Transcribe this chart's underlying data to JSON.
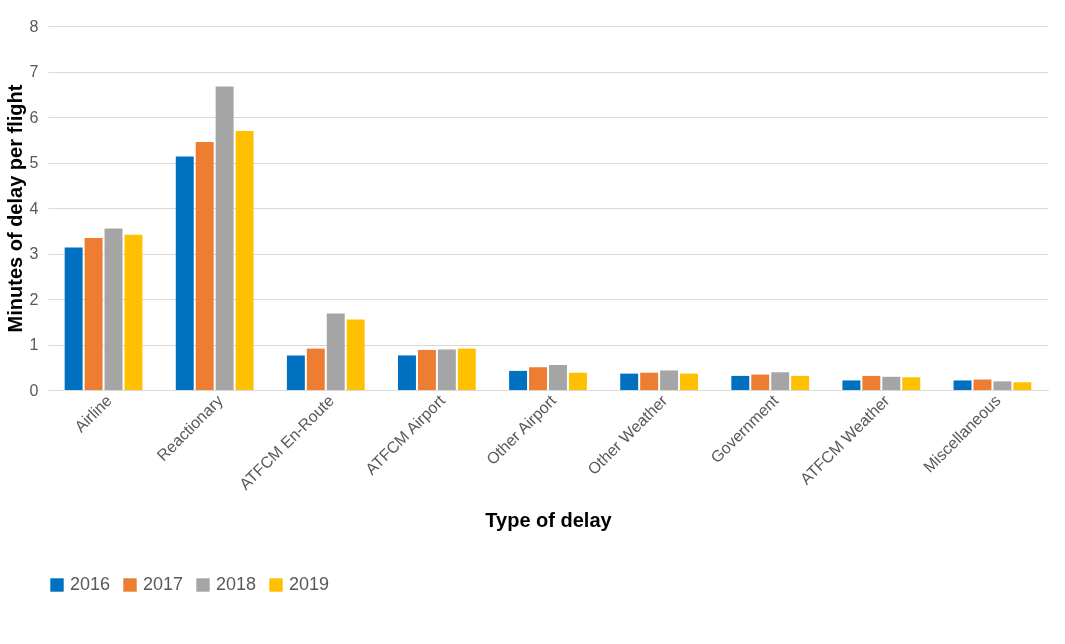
{
  "chart_data": {
    "type": "bar",
    "xlabel": "Type of delay",
    "ylabel": "Minutes of delay per flight",
    "categories": [
      "Airline",
      "Reactionary",
      "ATFCM En-Route",
      "ATFCM Airport",
      "Other Airport",
      "Other Weather",
      "Government",
      "ATFCM Weather",
      "Miscellaneous"
    ],
    "series": [
      {
        "name": "2016",
        "color": "#0070c0",
        "values": [
          3.13,
          5.13,
          0.76,
          0.76,
          0.42,
          0.36,
          0.31,
          0.21,
          0.21
        ]
      },
      {
        "name": "2017",
        "color": "#ed7d31",
        "values": [
          3.34,
          5.45,
          0.91,
          0.88,
          0.5,
          0.38,
          0.34,
          0.31,
          0.23
        ]
      },
      {
        "name": "2018",
        "color": "#a5a5a5",
        "values": [
          3.55,
          6.67,
          1.68,
          0.89,
          0.55,
          0.43,
          0.39,
          0.29,
          0.19
        ]
      },
      {
        "name": "2019",
        "color": "#ffc000",
        "values": [
          3.41,
          5.69,
          1.55,
          0.91,
          0.38,
          0.36,
          0.31,
          0.28,
          0.17
        ]
      }
    ],
    "ylim": [
      0,
      8
    ],
    "yticks": [
      0,
      1,
      2,
      3,
      4,
      5,
      6,
      7,
      8
    ],
    "grid": "y",
    "legend": "bottom"
  }
}
